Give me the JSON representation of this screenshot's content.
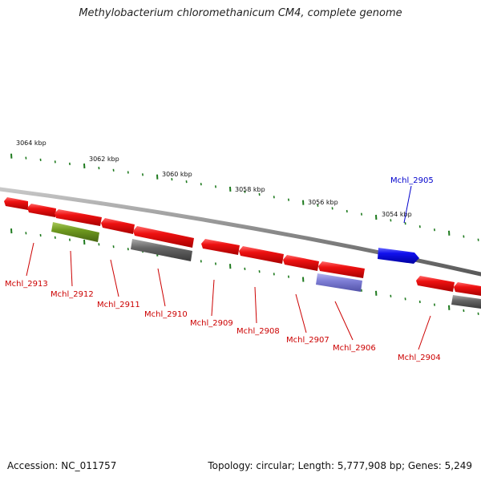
{
  "title": "Methylobacterium chloromethanicum CM4, complete genome",
  "footer": {
    "accession": "Accession: NC_011757",
    "summary": "Topology: circular; Length: 5,777,908 bp; Genes: 5,249"
  },
  "colors": {
    "backbone": "#8a8a8a",
    "tick": "#1e7a1e",
    "gene_red": "#ee1111",
    "gene_blue": "#1111ee",
    "gene_olive": "#6f9a1f",
    "gene_gray": "#666666",
    "gene_lavender": "#7f7fd6",
    "label_red": "#cc0000",
    "label_blue": "#0000cc"
  },
  "kbp_labels": [
    "3064 kbp",
    "3062 kbp",
    "3060 kbp",
    "3058 kbp",
    "3056 kbp",
    "3054 kbp"
  ],
  "gene_labels": [
    {
      "text": "Mchl_2913",
      "color": "red"
    },
    {
      "text": "Mchl_2912",
      "color": "red"
    },
    {
      "text": "Mchl_2911",
      "color": "red"
    },
    {
      "text": "Mchl_2910",
      "color": "red"
    },
    {
      "text": "Mchl_2909",
      "color": "red"
    },
    {
      "text": "Mchl_2908",
      "color": "red"
    },
    {
      "text": "Mchl_2907",
      "color": "red"
    },
    {
      "text": "Mchl_2906",
      "color": "red"
    },
    {
      "text": "Mchl_2904",
      "color": "red"
    },
    {
      "text": "Mchl_2905",
      "color": "blue"
    }
  ]
}
